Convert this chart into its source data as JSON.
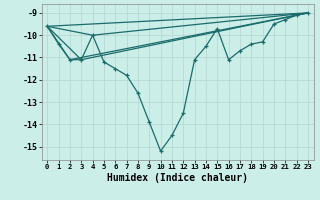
{
  "xlabel": "Humidex (Indice chaleur)",
  "background_color": "#cceee8",
  "grid_color": "#b8d8d4",
  "line_color": "#1a6b6b",
  "xlim": [
    -0.5,
    23.5
  ],
  "ylim": [
    -15.6,
    -8.6
  ],
  "xticks": [
    0,
    1,
    2,
    3,
    4,
    5,
    6,
    7,
    8,
    9,
    10,
    11,
    12,
    13,
    14,
    15,
    16,
    17,
    18,
    19,
    20,
    21,
    22,
    23
  ],
  "yticks": [
    -9,
    -10,
    -11,
    -12,
    -13,
    -14,
    -15
  ],
  "main_x": [
    0,
    1,
    2,
    3,
    4,
    5,
    6,
    7,
    8,
    9,
    10,
    11,
    12,
    13,
    14,
    15,
    16,
    17,
    18,
    19,
    20,
    21,
    22,
    23
  ],
  "main_y": [
    -9.6,
    -10.4,
    -11.1,
    -11.1,
    -10.0,
    -11.2,
    -11.5,
    -11.8,
    -12.6,
    -13.9,
    -15.2,
    -14.5,
    -13.5,
    -11.1,
    -10.5,
    -9.7,
    -11.1,
    -10.7,
    -10.4,
    -10.3,
    -9.5,
    -9.3,
    -9.1,
    -9.0
  ],
  "line1_x": [
    0,
    23
  ],
  "line1_y": [
    -9.6,
    -9.0
  ],
  "line2_x": [
    0,
    4,
    23
  ],
  "line2_y": [
    -9.6,
    -10.0,
    -9.0
  ],
  "line3_x": [
    0,
    3,
    23
  ],
  "line3_y": [
    -9.6,
    -11.1,
    -9.0
  ],
  "line4_x": [
    0,
    2,
    23
  ],
  "line4_y": [
    -9.6,
    -11.1,
    -9.0
  ]
}
